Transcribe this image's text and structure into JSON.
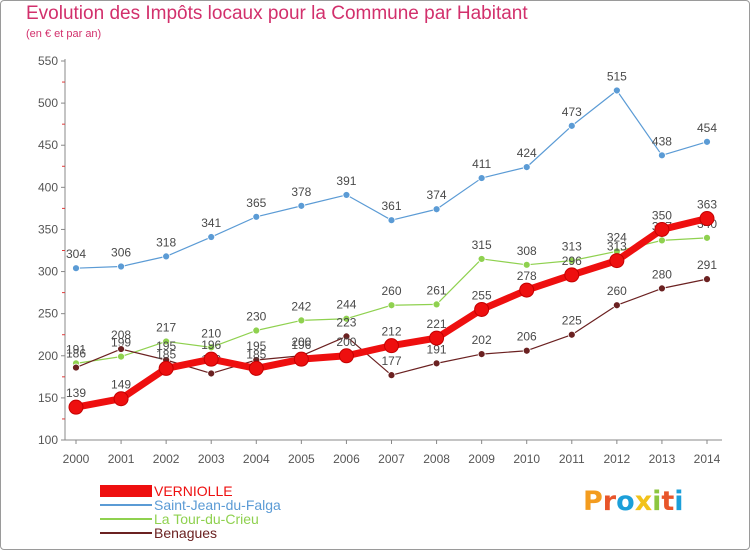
{
  "header": {
    "title": "Evolution des Impôts locaux pour la Commune par Habitant",
    "subtitle": "(en € et par an)"
  },
  "logo": {
    "letters": [
      "P",
      "r",
      "o",
      "x",
      "i",
      "t",
      "i"
    ],
    "colors": [
      "#f39c1f",
      "#e8552a",
      "#1c9fd9",
      "#f2c21a",
      "#8cc63f",
      "#e8552a",
      "#1c9fd9"
    ]
  },
  "chart_data": {
    "type": "line",
    "x": [
      "2000",
      "2001",
      "2002",
      "2003",
      "2004",
      "2005",
      "2006",
      "2007",
      "2008",
      "2009",
      "2010",
      "2011",
      "2012",
      "2013",
      "2014"
    ],
    "ylim": [
      100,
      550
    ],
    "yticks": [
      100,
      150,
      200,
      250,
      300,
      350,
      400,
      450,
      500,
      550
    ],
    "grid": false,
    "legend_position": "bottom-left",
    "series": [
      {
        "name": "Saint-Jean-du-Falga",
        "color": "#5b9bd5",
        "values": [
          304,
          306,
          318,
          341,
          365,
          378,
          391,
          361,
          374,
          411,
          424,
          473,
          515,
          438,
          454
        ],
        "labels": [
          "304",
          "306",
          "318",
          "341",
          "365",
          "378",
          "391",
          "361",
          "374",
          "411",
          "424",
          "473",
          "515",
          "438",
          "454"
        ]
      },
      {
        "name": "La Tour-du-Crieu",
        "color": "#8fd14f",
        "values": [
          191,
          199,
          217,
          210,
          230,
          242,
          244,
          260,
          261,
          315,
          308,
          313,
          324,
          337,
          340
        ],
        "labels": [
          "191",
          "199",
          "217",
          "210",
          "230",
          "242",
          "244",
          "260",
          "261",
          "315",
          "308",
          "313",
          "324",
          "337",
          "340"
        ]
      },
      {
        "name": "Benagues",
        "color": "#6b2121",
        "values": [
          186,
          208,
          195,
          179,
          195,
          200,
          223,
          177,
          191,
          202,
          206,
          225,
          260,
          280,
          291
        ],
        "labels": [
          "186",
          "208",
          "195",
          "179",
          "195",
          "200",
          "223",
          "177",
          "191",
          "202",
          "206",
          "225",
          "260",
          "280",
          "291"
        ]
      },
      {
        "name": "VERNIOLLE",
        "color": "#ee0f0f",
        "values": [
          139,
          149,
          185,
          196,
          185,
          196,
          200,
          212,
          221,
          255,
          278,
          296,
          313,
          350,
          363
        ],
        "labels": [
          "139",
          "149",
          "185",
          "196",
          "185",
          "196",
          "200",
          "212",
          "221",
          "255",
          "278",
          "296",
          "313",
          "350",
          "363"
        ]
      }
    ]
  },
  "legend": {
    "items": [
      {
        "label": "VERNIOLLE",
        "color": "#ee0f0f"
      },
      {
        "label": "Saint-Jean-du-Falga",
        "color": "#5b9bd5"
      },
      {
        "label": "La Tour-du-Crieu",
        "color": "#8fd14f"
      },
      {
        "label": "Benagues",
        "color": "#6b2121"
      }
    ]
  }
}
